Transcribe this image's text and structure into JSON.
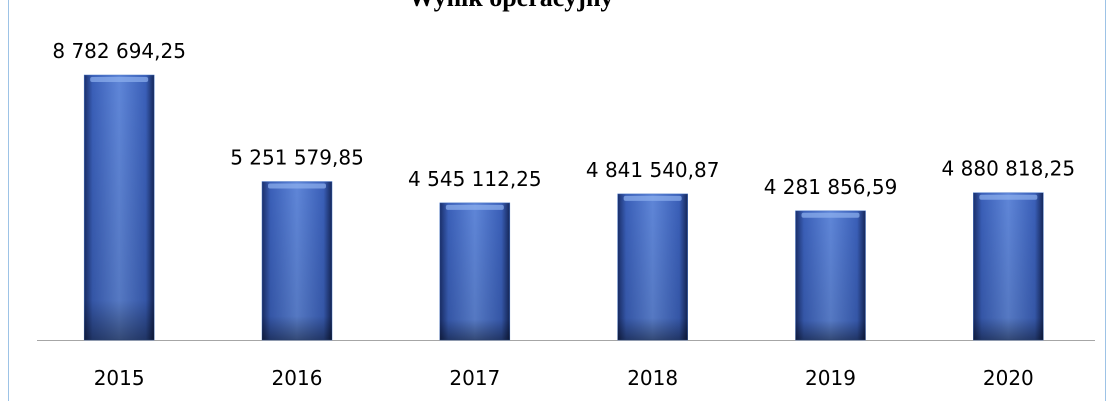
{
  "chart_data": {
    "type": "bar",
    "title": "Wynik operacyjny",
    "categories": [
      "2015",
      "2016",
      "2017",
      "2018",
      "2019",
      "2020"
    ],
    "values": [
      8782694.25,
      5251579.85,
      4545112.25,
      4841540.87,
      4281856.59,
      4880818.25
    ],
    "value_labels": [
      "8 782 694,25",
      "5 251 579,85",
      "4 545 112,25",
      "4 841 540,87",
      "4 281 856,59",
      "4 880 818,25"
    ],
    "color": "#4472c4"
  }
}
